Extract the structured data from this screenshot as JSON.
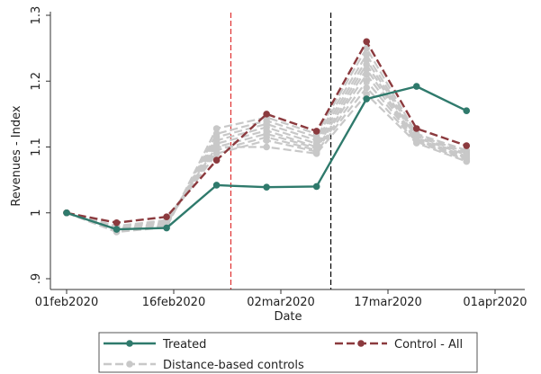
{
  "chart_data": {
    "type": "line",
    "xlabel": "Date",
    "ylabel": "Revenues - Index",
    "xlim": [
      "2020-02-01",
      "2020-04-01"
    ],
    "ylim": [
      0.9,
      1.3
    ],
    "x_ticks": [
      "2020-02-01",
      "2020-02-16",
      "2020-03-02",
      "2020-03-17",
      "2020-04-01"
    ],
    "x_tick_labels": [
      "01feb2020",
      "16feb2020",
      "02mar2020",
      "17mar2020",
      "01apr2020"
    ],
    "y_ticks": [
      0.9,
      1.0,
      1.1,
      1.2,
      1.3
    ],
    "y_tick_labels": [
      ".9",
      "1",
      "1.1",
      "1.2",
      "1.3"
    ],
    "x": [
      "2020-02-01",
      "2020-02-08",
      "2020-02-15",
      "2020-02-22",
      "2020-02-29",
      "2020-03-07",
      "2020-03-14",
      "2020-03-21",
      "2020-03-28"
    ],
    "series": [
      {
        "name": "Distance-based controls",
        "color": "#c8c8c8",
        "style": "dashed",
        "lines": [
          [
            1.0,
            0.971,
            0.978,
            1.128,
            1.145,
            1.12,
            1.25,
            1.12,
            1.095
          ],
          [
            1.0,
            0.972,
            0.98,
            1.12,
            1.14,
            1.115,
            1.24,
            1.118,
            1.092
          ],
          [
            1.0,
            0.974,
            0.982,
            1.115,
            1.135,
            1.11,
            1.232,
            1.116,
            1.09
          ],
          [
            1.0,
            0.975,
            0.983,
            1.11,
            1.13,
            1.105,
            1.225,
            1.114,
            1.088
          ],
          [
            1.0,
            0.976,
            0.984,
            1.105,
            1.125,
            1.1,
            1.218,
            1.112,
            1.086
          ],
          [
            1.0,
            0.977,
            0.985,
            1.1,
            1.12,
            1.098,
            1.21,
            1.11,
            1.084
          ],
          [
            1.0,
            0.978,
            0.986,
            1.095,
            1.115,
            1.095,
            1.2,
            1.11,
            1.082
          ],
          [
            1.0,
            0.979,
            0.988,
            1.09,
            1.11,
            1.093,
            1.19,
            1.108,
            1.08
          ],
          [
            1.0,
            0.98,
            0.989,
            1.1,
            1.1,
            1.09,
            1.18,
            1.106,
            1.078
          ]
        ]
      },
      {
        "name": "Control - All",
        "color": "#8b3a3e",
        "style": "dashed",
        "values": [
          1.0,
          0.985,
          0.994,
          1.08,
          1.15,
          1.124,
          1.26,
          1.128,
          1.102
        ]
      },
      {
        "name": "Treated",
        "color": "#2f7a6c",
        "style": "solid",
        "values": [
          1.0,
          0.975,
          0.977,
          1.042,
          1.039,
          1.04,
          1.173,
          1.192,
          1.155
        ]
      }
    ],
    "vertical_lines": [
      {
        "x": "2020-02-24",
        "color": "#e03030",
        "style": "dashed"
      },
      {
        "x": "2020-03-09",
        "color": "#000000",
        "style": "dashed"
      }
    ],
    "legend_position": "bottom"
  }
}
